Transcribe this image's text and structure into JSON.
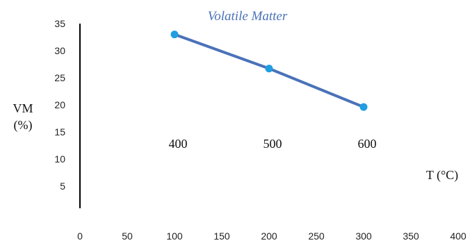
{
  "chart_data": {
    "type": "line",
    "title": "Volatile Matter",
    "ylabel_line1": "VM",
    "ylabel_line2": "(%)",
    "xlabel": "T (°C)",
    "xlim": [
      0,
      400
    ],
    "ylim": [
      0,
      35
    ],
    "x_ticks": [
      "0",
      "50",
      "100",
      "150",
      "200",
      "250",
      "300",
      "350",
      "400"
    ],
    "y_ticks": [
      "5",
      "10",
      "15",
      "20",
      "25",
      "30",
      "35"
    ],
    "series": [
      {
        "color": "#4a72b8",
        "marker_color": "#1f9ee0",
        "points": [
          {
            "x": 100,
            "y": 33.0,
            "label": "400"
          },
          {
            "x": 200,
            "y": 26.7,
            "label": "500"
          },
          {
            "x": 300,
            "y": 19.6,
            "label": "600"
          }
        ]
      }
    ],
    "grid": false,
    "legend": "none"
  }
}
